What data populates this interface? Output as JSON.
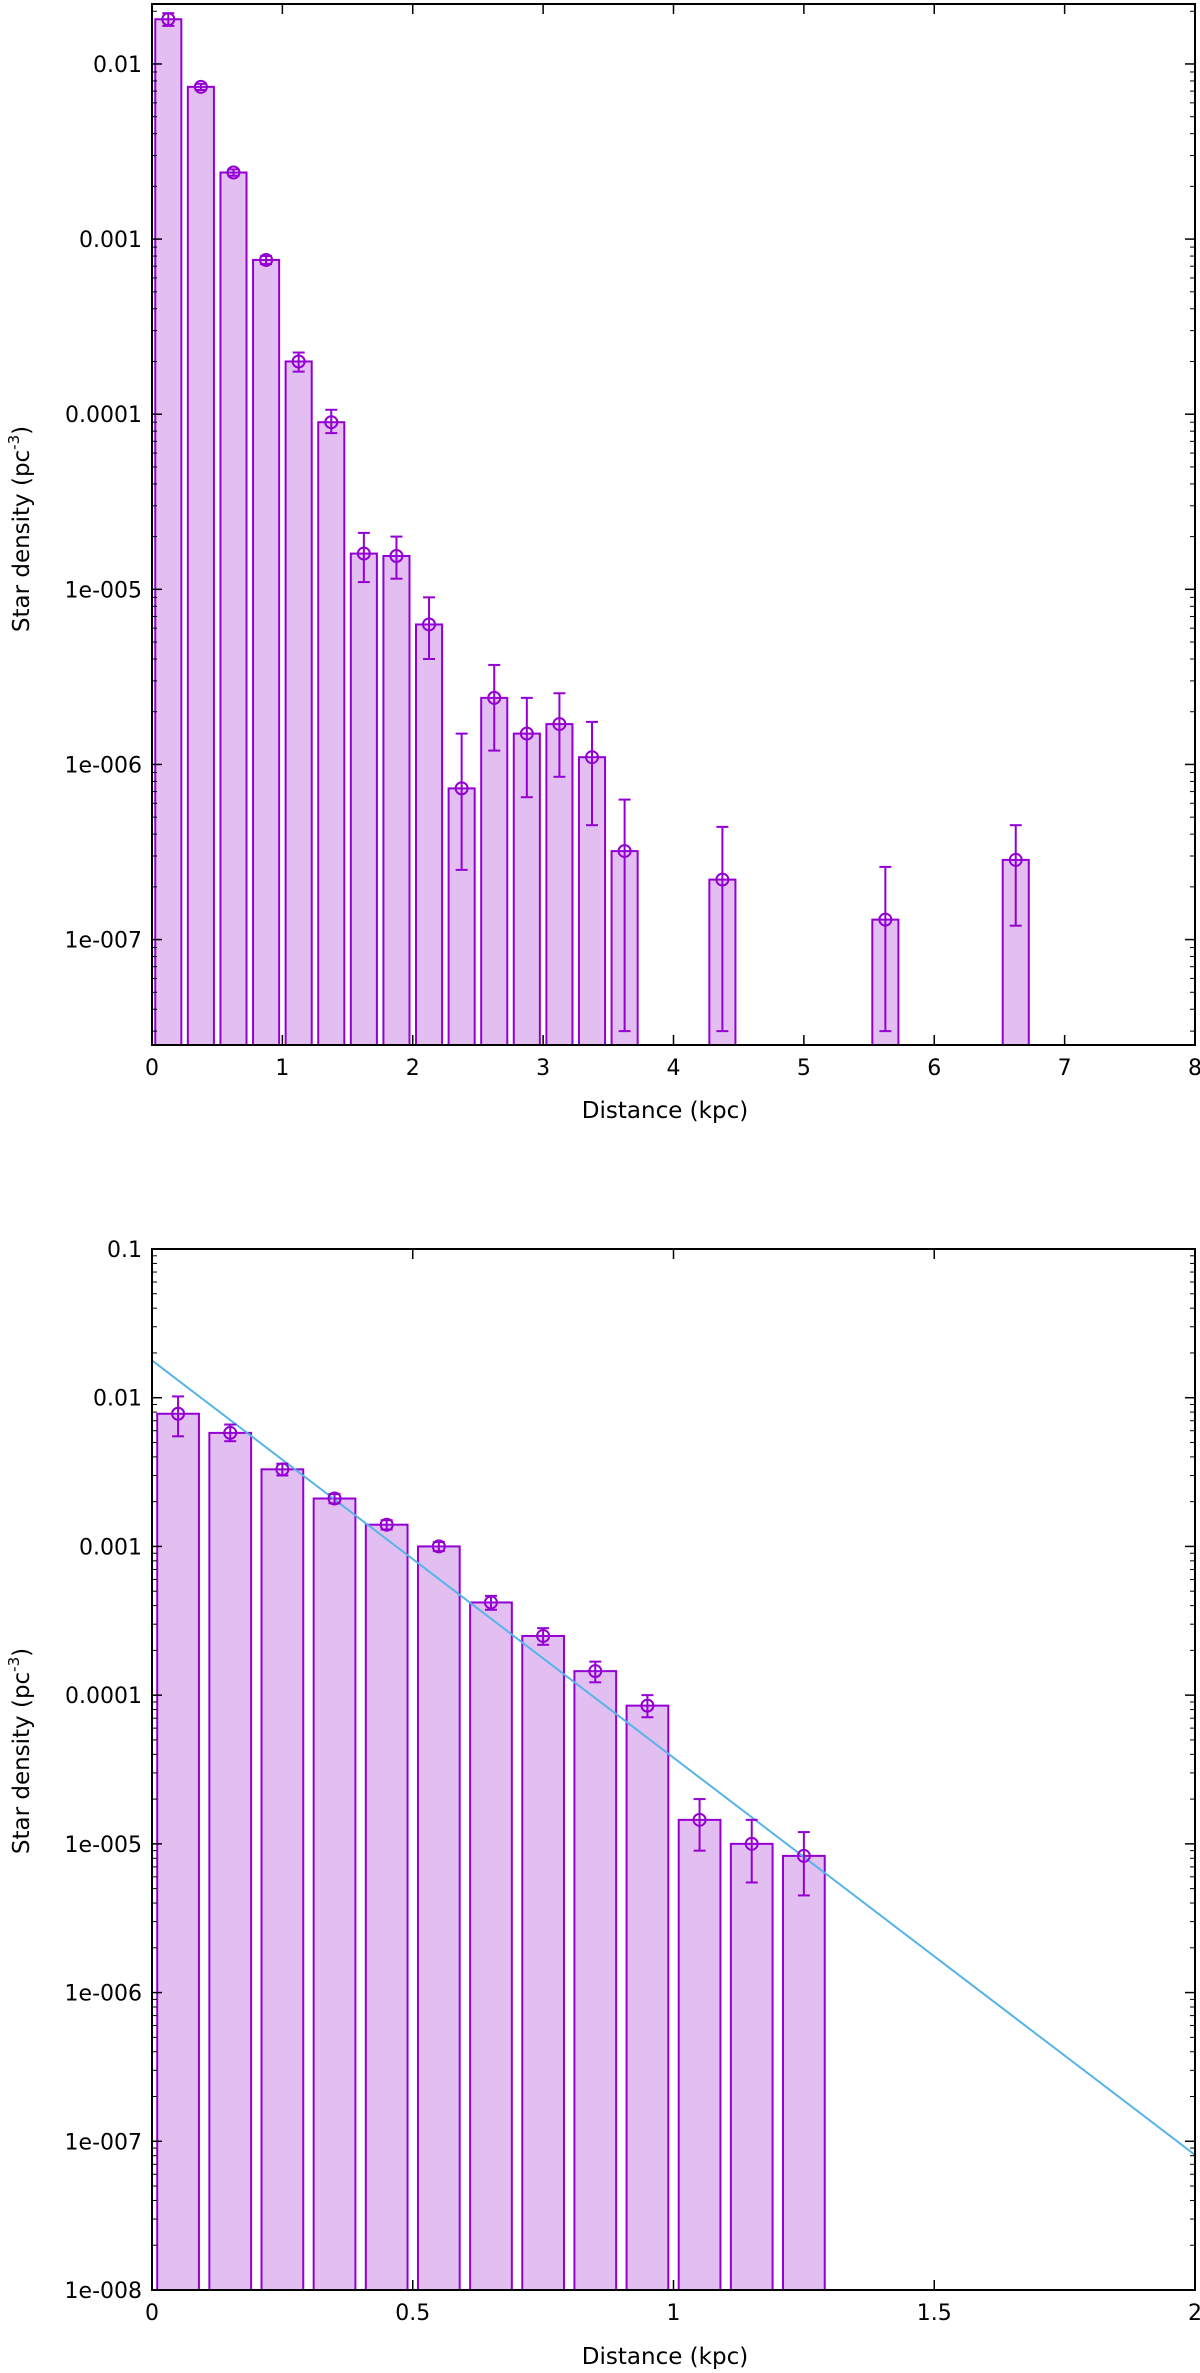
{
  "colors": {
    "bar_fill": "#e3bff1",
    "bar_stroke": "#9400d3",
    "fit_line": "#56b4e9",
    "frame": "#000000"
  },
  "chart_data": [
    {
      "type": "bar",
      "title": "",
      "xlabel": "Distance (kpc)",
      "ylabel": "Star density (pc⁻³)",
      "ylabel_main": "Star density (pc",
      "ylabel_sup": "-3",
      "ylabel_close": ")",
      "yscale": "log",
      "xlim": [
        0,
        8
      ],
      "ylim": [
        2.5e-08,
        0.022
      ],
      "xticks": [
        0,
        1,
        2,
        3,
        4,
        5,
        6,
        7,
        8
      ],
      "xtick_labels": [
        "0",
        "1",
        "2",
        "3",
        "4",
        "5",
        "6",
        "7",
        "8"
      ],
      "yticks": [
        0.01,
        0.001,
        0.0001,
        1e-05,
        1e-06,
        1e-07
      ],
      "ytick_labels": [
        "0.01",
        "0.001",
        "0.0001",
        "1e-005",
        "1e-006",
        "1e-007"
      ],
      "bar_width": 0.2,
      "bars": [
        {
          "x": 0.125,
          "y": 0.018,
          "err_low": 0.0165,
          "err_high": 0.0195
        },
        {
          "x": 0.375,
          "y": 0.0074,
          "err_low": 0.0071,
          "err_high": 0.0077
        },
        {
          "x": 0.625,
          "y": 0.0024,
          "err_low": 0.0023,
          "err_high": 0.0025
        },
        {
          "x": 0.875,
          "y": 0.00076,
          "err_low": 0.00072,
          "err_high": 0.0008
        },
        {
          "x": 1.125,
          "y": 0.0002,
          "err_low": 0.000175,
          "err_high": 0.000225
        },
        {
          "x": 1.375,
          "y": 9e-05,
          "err_low": 7.8e-05,
          "err_high": 0.000106
        },
        {
          "x": 1.625,
          "y": 1.6e-05,
          "err_low": 1.1e-05,
          "err_high": 2.1e-05
        },
        {
          "x": 1.875,
          "y": 1.55e-05,
          "err_low": 1.15e-05,
          "err_high": 2e-05
        },
        {
          "x": 2.125,
          "y": 6.3e-06,
          "err_low": 4e-06,
          "err_high": 9e-06
        },
        {
          "x": 2.375,
          "y": 7.3e-07,
          "err_low": 2.5e-07,
          "err_high": 1.5e-06
        },
        {
          "x": 2.625,
          "y": 2.4e-06,
          "err_low": 1.2e-06,
          "err_high": 3.7e-06
        },
        {
          "x": 2.875,
          "y": 1.5e-06,
          "err_low": 6.5e-07,
          "err_high": 2.4e-06
        },
        {
          "x": 3.125,
          "y": 1.7e-06,
          "err_low": 8.5e-07,
          "err_high": 2.55e-06
        },
        {
          "x": 3.375,
          "y": 1.1e-06,
          "err_low": 4.5e-07,
          "err_high": 1.75e-06
        },
        {
          "x": 3.625,
          "y": 3.2e-07,
          "err_low": 3e-08,
          "err_high": 6.3e-07
        },
        {
          "x": 4.375,
          "y": 2.2e-07,
          "err_low": 3e-08,
          "err_high": 4.4e-07
        },
        {
          "x": 5.625,
          "y": 1.3e-07,
          "err_low": 3e-08,
          "err_high": 2.6e-07
        },
        {
          "x": 6.625,
          "y": 2.85e-07,
          "err_low": 1.2e-07,
          "err_high": 4.5e-07
        }
      ]
    },
    {
      "type": "bar",
      "title": "",
      "xlabel": "Distance (kpc)",
      "ylabel": "Star density (pc⁻³)",
      "ylabel_main": "Star density (pc",
      "ylabel_sup": "-3",
      "ylabel_close": ")",
      "yscale": "log",
      "xlim": [
        0,
        2
      ],
      "ylim": [
        1e-08,
        0.1
      ],
      "xticks": [
        0,
        0.5,
        1,
        1.5,
        2
      ],
      "xtick_labels": [
        "0",
        "0.5",
        "1",
        "1.5",
        "2"
      ],
      "yticks": [
        0.1,
        0.01,
        0.001,
        0.0001,
        1e-05,
        1e-06,
        1e-07,
        1e-08
      ],
      "ytick_labels": [
        "0.1",
        "0.01",
        "0.001",
        "0.0001",
        "1e-005",
        "1e-006",
        "1e-007",
        "1e-008"
      ],
      "bar_width": 0.08,
      "bars": [
        {
          "x": 0.05,
          "y": 0.0078,
          "err_low": 0.0055,
          "err_high": 0.0102
        },
        {
          "x": 0.15,
          "y": 0.0058,
          "err_low": 0.0051,
          "err_high": 0.0066
        },
        {
          "x": 0.25,
          "y": 0.0033,
          "err_low": 0.003,
          "err_high": 0.0036
        },
        {
          "x": 0.35,
          "y": 0.0021,
          "err_low": 0.00195,
          "err_high": 0.00225
        },
        {
          "x": 0.45,
          "y": 0.0014,
          "err_low": 0.0013,
          "err_high": 0.0015
        },
        {
          "x": 0.55,
          "y": 0.001,
          "err_low": 0.00093,
          "err_high": 0.00107
        },
        {
          "x": 0.65,
          "y": 0.00042,
          "err_low": 0.000375,
          "err_high": 0.000465
        },
        {
          "x": 0.75,
          "y": 0.00025,
          "err_low": 0.000218,
          "err_high": 0.000282
        },
        {
          "x": 0.85,
          "y": 0.000145,
          "err_low": 0.000122,
          "err_high": 0.000168
        },
        {
          "x": 0.95,
          "y": 8.5e-05,
          "err_low": 7.1e-05,
          "err_high": 0.0001
        },
        {
          "x": 1.05,
          "y": 1.45e-05,
          "err_low": 9e-06,
          "err_high": 2e-05
        },
        {
          "x": 1.15,
          "y": 1e-05,
          "err_low": 5.5e-06,
          "err_high": 1.45e-05
        },
        {
          "x": 1.25,
          "y": 8.3e-06,
          "err_low": 4.5e-06,
          "err_high": 1.2e-05
        }
      ],
      "fit_line": {
        "x": [
          0,
          2
        ],
        "y": [
          0.0178,
          8.1e-08
        ]
      }
    }
  ]
}
